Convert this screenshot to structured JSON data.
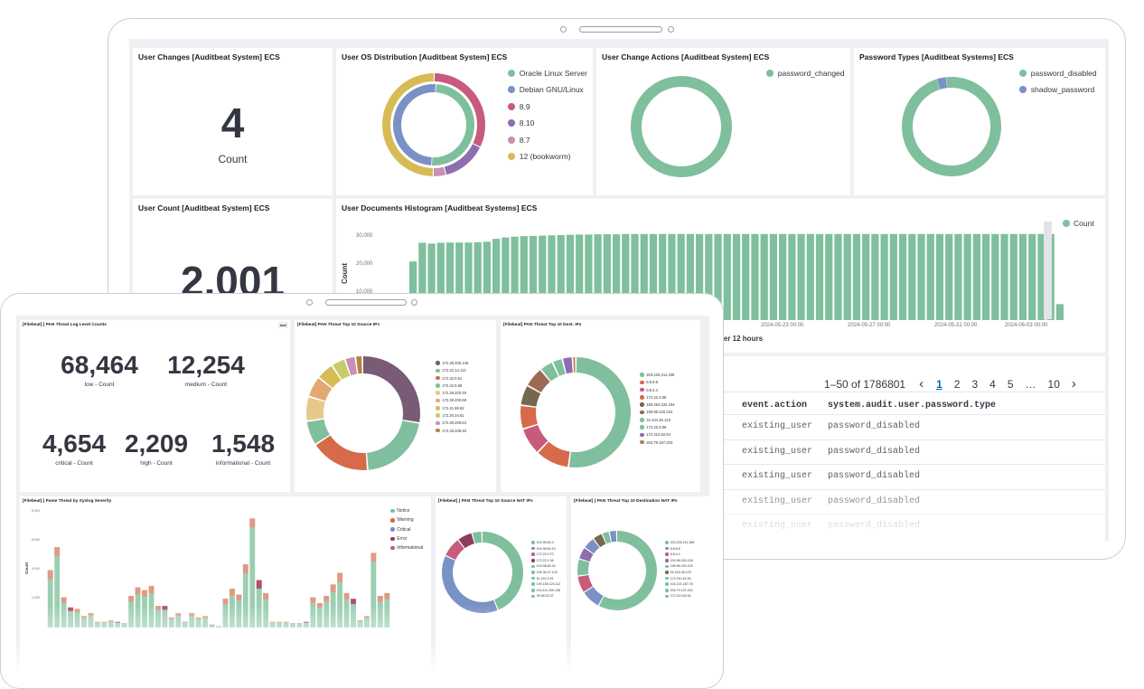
{
  "colors": {
    "green": "#7fbf9d",
    "blue": "#7a91c6",
    "pink": "#c85a7c",
    "purple": "#8e6db0",
    "lilac": "#c88fb7",
    "yellow": "#d7bb55",
    "grey": "#d3dae6"
  },
  "back": {
    "user_changes": {
      "title": "User Changes [Auditbeat System] ECS",
      "value": "4",
      "label": "Count"
    },
    "os_distribution": {
      "title": "User OS Distribution [Auditbeat System] ECS",
      "legend": [
        {
          "label": "Oracle Linux Server",
          "color": "#7fbf9d"
        },
        {
          "label": "Debian GNU/Linux",
          "color": "#7a91c6"
        },
        {
          "label": "8.9",
          "color": "#c85a7c"
        },
        {
          "label": "8.10",
          "color": "#8e6db0"
        },
        {
          "label": "8.7",
          "color": "#c88fb7"
        },
        {
          "label": "12 (bookworm)",
          "color": "#d7bb55"
        }
      ],
      "inner": [
        {
          "value": 50,
          "color": "#7fbf9d"
        },
        {
          "value": 50,
          "color": "#7a91c6"
        }
      ],
      "outer": [
        {
          "value": 32,
          "color": "#c85a7c"
        },
        {
          "value": 14,
          "color": "#8e6db0"
        },
        {
          "value": 4,
          "color": "#c88fb7"
        },
        {
          "value": 50,
          "color": "#d7bb55"
        }
      ]
    },
    "change_actions": {
      "title": "User Change Actions [Auditbeat System] ECS",
      "legend": [
        {
          "label": "password_changed",
          "color": "#7fbf9d"
        }
      ],
      "slices": [
        {
          "value": 100,
          "color": "#7fbf9d"
        }
      ]
    },
    "password_types": {
      "title": "Password Types [Auditbeat Systems] ECS",
      "legend": [
        {
          "label": "password_disabled",
          "color": "#7fbf9d"
        },
        {
          "label": "shadow_password",
          "color": "#7a91c6"
        }
      ],
      "slices": [
        {
          "value": 97,
          "color": "#7fbf9d"
        },
        {
          "value": 3,
          "color": "#7a91c6"
        }
      ]
    },
    "user_count": {
      "title": "User Count [Auditbeat System] ECS",
      "value": "2,001"
    },
    "histogram": {
      "title": "User Documents Histogram [Auditbeat Systems] ECS",
      "ylabel": "Count",
      "xlabel": "per 12 hours",
      "legend": "Count",
      "yticks": [
        "30,000",
        "20,000",
        "10,000"
      ],
      "xticks": [
        "2024-05-23 00:00",
        "2024-05-27 00:00",
        "2024-05-31 00:00",
        "2024-06-03 00:00"
      ]
    },
    "table": {
      "pagination": {
        "range": "1–50 of 1786801",
        "prev": "‹",
        "next": "›",
        "pages": [
          "1",
          "2",
          "3",
          "4",
          "5",
          "…",
          "10"
        ]
      },
      "columns": [
        "event.action",
        "system.audit.user.password.type"
      ],
      "rows": [
        [
          "existing_user",
          "password_disabled"
        ],
        [
          "existing_user",
          "password_disabled"
        ],
        [
          "existing_user",
          "password_disabled"
        ],
        [
          "existing_user",
          "password_disabled"
        ],
        [
          "existing_user",
          "password_disabled"
        ]
      ]
    }
  },
  "chart_data": [
    {
      "type": "bar",
      "title": "User Documents Histogram [Auditbeat Systems] ECS",
      "ylabel": "Count",
      "ylim": [
        0,
        38000
      ],
      "values": [
        22000,
        29000,
        28700,
        29000,
        29100,
        29100,
        29100,
        29200,
        29400,
        30500,
        31000,
        31300,
        31500,
        31600,
        31700,
        31800,
        31900,
        32000,
        32100,
        32100,
        32200,
        32200,
        32200,
        32300,
        32300,
        32300,
        32300,
        32300,
        32300,
        32300,
        32300,
        32300,
        32300,
        32300,
        32300,
        32300,
        32300,
        32300,
        32300,
        32300,
        32300,
        32300,
        32300,
        32300,
        32300,
        32300,
        32300,
        32300,
        32300,
        32300,
        32300,
        32300,
        32300,
        32300,
        32300,
        32300,
        32300,
        32300,
        32300,
        32300,
        32300,
        32300,
        32300,
        32300,
        32300,
        32300,
        32300,
        32300,
        32300,
        32300,
        32300,
        32300,
        32300,
        32300,
        32300,
        32300,
        32300,
        32300,
        32300,
        32300,
        32300,
        32300,
        32300,
        32300,
        32300,
        32300,
        32300,
        32300,
        32300,
        32300,
        32300,
        32300,
        32300,
        32300,
        32300,
        32300,
        32300,
        32300,
        32300,
        32300,
        32300,
        32300,
        32300,
        32300,
        32300,
        32300,
        32300,
        32300,
        32300,
        32300,
        32300,
        32300,
        6000
      ]
    },
    {
      "type": "bar",
      "title": "Pame Threat by Syslog Severity",
      "ylabel": "Count",
      "yticks": [
        "8,000",
        "6,000",
        "4,000",
        "2,000"
      ],
      "ylim": [
        0,
        8000
      ],
      "series_names": [
        "Notice",
        "Warning",
        "Critical",
        "Error",
        "Informational"
      ],
      "values": [
        4000,
        5600,
        2100,
        1400,
        1300,
        800,
        1000,
        400,
        400,
        500,
        400,
        300,
        2200,
        2800,
        2600,
        2900,
        1500,
        1500,
        700,
        1000,
        400,
        1000,
        700,
        800,
        200,
        100,
        2000,
        2700,
        2300,
        4400,
        7600,
        3300,
        2400,
        400,
        400,
        400,
        300,
        300,
        400,
        2100,
        1700,
        2200,
        3000,
        3800,
        2400,
        2000,
        500,
        800,
        5200,
        2200,
        2400
      ]
    }
  ],
  "front": {
    "log_level": {
      "title": "[Filebeat]         ] PAN Threat Log Level Counts",
      "badge": "■■■",
      "stats": [
        {
          "value": "68,464",
          "label": "low - Count"
        },
        {
          "value": "12,254",
          "label": "medium - Count"
        },
        {
          "value": "4,654",
          "label": "critical - Count"
        },
        {
          "value": "2,209",
          "label": "high - Count"
        },
        {
          "value": "1,548",
          "label": "informational - Count"
        }
      ]
    },
    "src_ips": {
      "title": "[Filebeat] PAN Threat Top 10 Source IPs",
      "legend": [
        {
          "label": "172.28.200.145",
          "color": "#7a5b75"
        },
        {
          "label": "172.22.14.112",
          "color": "#7fbf9d"
        },
        {
          "label": "172.22.0.61",
          "color": "#d66a4a"
        },
        {
          "label": "172.22.5.68",
          "color": "#7fbf9d"
        },
        {
          "label": "172.28.200.49",
          "color": "#e6c98a"
        },
        {
          "label": "172.28.200.68",
          "color": "#e2a874"
        },
        {
          "label": "172.21.98.92",
          "color": "#d7bb55"
        },
        {
          "label": "172.20.34.81",
          "color": "#c8cc6a"
        },
        {
          "label": "172.28.209.54",
          "color": "#c88fb7"
        },
        {
          "label": "172.28.209.46",
          "color": "#b78244"
        }
      ],
      "slices": [
        {
          "value": 28,
          "color": "#7a5b75"
        },
        {
          "value": 21,
          "color": "#7fbf9d"
        },
        {
          "value": 17,
          "color": "#d66a4a"
        },
        {
          "value": 7,
          "color": "#7fbf9d"
        },
        {
          "value": 7,
          "color": "#e6c98a"
        },
        {
          "value": 6,
          "color": "#e2a874"
        },
        {
          "value": 5,
          "color": "#d7bb55"
        },
        {
          "value": 4,
          "color": "#c8cc6a"
        },
        {
          "value": 3,
          "color": "#c88fb7"
        },
        {
          "value": 2,
          "color": "#b78244"
        }
      ]
    },
    "dest_ips": {
      "title": "[Filebeat] PAN Threat Top 10 Dest. IPs",
      "legend": [
        {
          "label": "203.225.211.188",
          "color": "#7fbf9d"
        },
        {
          "label": "8.8.8.8",
          "color": "#d66a4a"
        },
        {
          "label": "8.8.4.4",
          "color": "#c85a7c"
        },
        {
          "label": "172.22.0.88",
          "color": "#d66a4a"
        },
        {
          "label": "169.254.225.194",
          "color": "#76684f"
        },
        {
          "label": "169.96.220.224",
          "color": "#9f6a52"
        },
        {
          "label": "34.104.35.123",
          "color": "#7fbf9d"
        },
        {
          "label": "172.22.0.89",
          "color": "#7fbf9d"
        },
        {
          "label": "172.210.62.94",
          "color": "#8e6db0"
        },
        {
          "label": "204.79.197.203",
          "color": "#b78244"
        }
      ],
      "slices": [
        {
          "value": 52,
          "color": "#7fbf9d"
        },
        {
          "value": 10,
          "color": "#d66a4a"
        },
        {
          "value": 8,
          "color": "#c85a7c"
        },
        {
          "value": 7,
          "color": "#d66a4a"
        },
        {
          "value": 6,
          "color": "#76684f"
        },
        {
          "value": 6,
          "color": "#9f6a52"
        },
        {
          "value": 4,
          "color": "#7fbf9d"
        },
        {
          "value": 3,
          "color": "#7fbf9d"
        },
        {
          "value": 3,
          "color": "#8e6db0"
        },
        {
          "value": 1,
          "color": "#b78244"
        }
      ]
    },
    "syslog": {
      "title": "[Filebeat]         ] Pame Threat by Syslog Severity",
      "legend": [
        {
          "label": "Notice",
          "color": "#7fbf9d"
        },
        {
          "label": "Warning",
          "color": "#d66a4a"
        },
        {
          "label": "Critical",
          "color": "#7a91c6"
        },
        {
          "label": "Error",
          "color": "#8e3c5b"
        },
        {
          "label": "Informational",
          "color": "#c85a7c"
        }
      ],
      "ylabel": "Count",
      "yticks": [
        "8,000",
        "6,000",
        "4,000",
        "2,000"
      ]
    },
    "src_nat": {
      "title": "[Filebeat]         ] PAN Threat Top 10 Source NAT IPs",
      "legend": [
        {
          "label": "104.98.60.4",
          "color": "#7fbf9d"
        },
        {
          "label": "104.98.60.10",
          "color": "#7a91c6"
        },
        {
          "label": "172.22.0.70",
          "color": "#c85a7c"
        },
        {
          "label": "172.22.1.96",
          "color": "#8e3c5b"
        },
        {
          "label": "104.98.60.34",
          "color": "#7fbf9d"
        },
        {
          "label": "195.36.47.123",
          "color": "#7fbf9d"
        },
        {
          "label": "91.222.2.91",
          "color": "#7fbf9d"
        },
        {
          "label": "195.155.123.112",
          "color": "#7fbf9d"
        },
        {
          "label": "104.111.209.198",
          "color": "#7fbf9d"
        },
        {
          "label": "39.98.23.37",
          "color": "#7fbf9d"
        }
      ],
      "slices": [
        {
          "value": 44,
          "color": "#7fbf9d"
        },
        {
          "value": 38,
          "color": "#7a91c6"
        },
        {
          "value": 8,
          "color": "#c85a7c"
        },
        {
          "value": 6,
          "color": "#8e3c5b"
        },
        {
          "value": 4,
          "color": "#7fbf9d"
        }
      ]
    },
    "dest_nat": {
      "title": "[Filebeat]         ] PAN Threat Top 10 Destination NAT IPs",
      "legend": [
        {
          "label": "203.225.211.188",
          "color": "#7fbf9d"
        },
        {
          "label": "8.8.8.8",
          "color": "#7a91c6"
        },
        {
          "label": "8.8.4.4",
          "color": "#c85a7c"
        },
        {
          "label": "104.98.240.106",
          "color": "#8e6db0"
        },
        {
          "label": "169.96.220.224",
          "color": "#7fbf9d"
        },
        {
          "label": "34.104.35.123",
          "color": "#76684f"
        },
        {
          "label": "172.210.62.94",
          "color": "#7fbf9d"
        },
        {
          "label": "104.221.187.78",
          "color": "#7fbf9d"
        },
        {
          "label": "204.79.197.203",
          "color": "#7fbf9d"
        },
        {
          "label": "172.210.62.94",
          "color": "#7fbf9d"
        }
      ],
      "slices": [
        {
          "value": 58,
          "color": "#7fbf9d"
        },
        {
          "value": 8,
          "color": "#7a91c6"
        },
        {
          "value": 7,
          "color": "#c85a7c"
        },
        {
          "value": 7,
          "color": "#7fbf9d"
        },
        {
          "value": 5,
          "color": "#8e6db0"
        },
        {
          "value": 5,
          "color": "#7a91c6"
        },
        {
          "value": 4,
          "color": "#76684f"
        },
        {
          "value": 3,
          "color": "#7fbf9d"
        },
        {
          "value": 3,
          "color": "#7a91c6"
        }
      ]
    }
  }
}
